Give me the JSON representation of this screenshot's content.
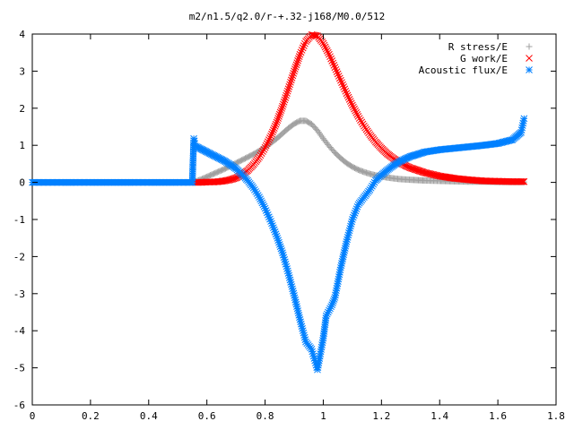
{
  "chart_data": {
    "type": "scatter",
    "title": "m2/n1.5/q2.0/r-+.32-j168/M0.0/512",
    "xlabel": "",
    "ylabel": "",
    "xlim": [
      0,
      1.8
    ],
    "ylim": [
      -6,
      4
    ],
    "x_ticks": [
      "0",
      "0.2",
      "0.4",
      "0.6",
      "0.8",
      "1",
      "1.2",
      "1.4",
      "1.6",
      "1.8"
    ],
    "y_ticks": [
      "-6",
      "-5",
      "-4",
      "-3",
      "-2",
      "-1",
      "0",
      "1",
      "2",
      "3",
      "4"
    ],
    "grid": false,
    "legend_position": "top-right",
    "series": [
      {
        "name": "R stress/E",
        "color": "#a0a0a0",
        "marker": "plus",
        "points": [
          [
            0.56,
            0.02
          ],
          [
            0.58,
            0.08
          ],
          [
            0.6,
            0.15
          ],
          [
            0.62,
            0.22
          ],
          [
            0.64,
            0.29
          ],
          [
            0.66,
            0.36
          ],
          [
            0.68,
            0.44
          ],
          [
            0.7,
            0.52
          ],
          [
            0.72,
            0.6
          ],
          [
            0.74,
            0.68
          ],
          [
            0.76,
            0.76
          ],
          [
            0.78,
            0.85
          ],
          [
            0.8,
            0.95
          ],
          [
            0.82,
            1.06
          ],
          [
            0.84,
            1.18
          ],
          [
            0.86,
            1.32
          ],
          [
            0.88,
            1.46
          ],
          [
            0.9,
            1.58
          ],
          [
            0.92,
            1.66
          ],
          [
            0.94,
            1.66
          ],
          [
            0.96,
            1.57
          ],
          [
            0.98,
            1.4
          ],
          [
            1.0,
            1.18
          ],
          [
            1.02,
            0.98
          ],
          [
            1.04,
            0.8
          ],
          [
            1.06,
            0.65
          ],
          [
            1.08,
            0.52
          ],
          [
            1.1,
            0.42
          ],
          [
            1.12,
            0.34
          ],
          [
            1.14,
            0.28
          ],
          [
            1.16,
            0.23
          ],
          [
            1.18,
            0.19
          ],
          [
            1.2,
            0.16
          ],
          [
            1.22,
            0.13
          ],
          [
            1.24,
            0.11
          ],
          [
            1.26,
            0.09
          ],
          [
            1.28,
            0.08
          ],
          [
            1.3,
            0.07
          ],
          [
            1.35,
            0.05
          ],
          [
            1.4,
            0.04
          ],
          [
            1.45,
            0.03
          ],
          [
            1.5,
            0.02
          ],
          [
            1.55,
            0.02
          ],
          [
            1.6,
            0.01
          ],
          [
            1.65,
            0.01
          ],
          [
            1.69,
            0.01
          ]
        ]
      },
      {
        "name": "G work/E",
        "color": "#ff0000",
        "marker": "cross",
        "points": [
          [
            0.56,
            0.0
          ],
          [
            0.58,
            0.0
          ],
          [
            0.6,
            0.01
          ],
          [
            0.62,
            0.01
          ],
          [
            0.64,
            0.02
          ],
          [
            0.66,
            0.04
          ],
          [
            0.68,
            0.07
          ],
          [
            0.7,
            0.12
          ],
          [
            0.72,
            0.2
          ],
          [
            0.74,
            0.32
          ],
          [
            0.76,
            0.48
          ],
          [
            0.78,
            0.68
          ],
          [
            0.8,
            0.94
          ],
          [
            0.82,
            1.25
          ],
          [
            0.84,
            1.62
          ],
          [
            0.86,
            2.05
          ],
          [
            0.88,
            2.52
          ],
          [
            0.9,
            3.0
          ],
          [
            0.92,
            3.45
          ],
          [
            0.94,
            3.8
          ],
          [
            0.96,
            3.98
          ],
          [
            0.98,
            3.95
          ],
          [
            1.0,
            3.75
          ],
          [
            1.02,
            3.45
          ],
          [
            1.04,
            3.1
          ],
          [
            1.06,
            2.75
          ],
          [
            1.08,
            2.4
          ],
          [
            1.1,
            2.08
          ],
          [
            1.12,
            1.78
          ],
          [
            1.14,
            1.52
          ],
          [
            1.16,
            1.29
          ],
          [
            1.18,
            1.09
          ],
          [
            1.2,
            0.92
          ],
          [
            1.22,
            0.77
          ],
          [
            1.24,
            0.65
          ],
          [
            1.26,
            0.55
          ],
          [
            1.28,
            0.46
          ],
          [
            1.3,
            0.39
          ],
          [
            1.35,
            0.26
          ],
          [
            1.4,
            0.17
          ],
          [
            1.45,
            0.11
          ],
          [
            1.5,
            0.07
          ],
          [
            1.55,
            0.04
          ],
          [
            1.6,
            0.03
          ],
          [
            1.65,
            0.02
          ],
          [
            1.69,
            0.02
          ]
        ]
      },
      {
        "name": "Acoustic flux/E",
        "color": "#0080ff",
        "marker": "star",
        "points": [
          [
            0.0,
            0.0
          ],
          [
            0.05,
            0.0
          ],
          [
            0.1,
            0.0
          ],
          [
            0.15,
            0.0
          ],
          [
            0.2,
            0.0
          ],
          [
            0.25,
            0.0
          ],
          [
            0.3,
            0.0
          ],
          [
            0.35,
            0.0
          ],
          [
            0.4,
            0.0
          ],
          [
            0.45,
            0.0
          ],
          [
            0.5,
            0.0
          ],
          [
            0.55,
            0.0
          ],
          [
            0.555,
            1.18
          ],
          [
            0.56,
            0.98
          ],
          [
            0.58,
            0.9
          ],
          [
            0.6,
            0.82
          ],
          [
            0.62,
            0.74
          ],
          [
            0.64,
            0.66
          ],
          [
            0.66,
            0.58
          ],
          [
            0.68,
            0.48
          ],
          [
            0.7,
            0.37
          ],
          [
            0.72,
            0.22
          ],
          [
            0.74,
            0.05
          ],
          [
            0.76,
            -0.15
          ],
          [
            0.78,
            -0.4
          ],
          [
            0.8,
            -0.7
          ],
          [
            0.82,
            -1.05
          ],
          [
            0.84,
            -1.45
          ],
          [
            0.86,
            -1.9
          ],
          [
            0.88,
            -2.45
          ],
          [
            0.9,
            -3.05
          ],
          [
            0.92,
            -3.7
          ],
          [
            0.94,
            -4.3
          ],
          [
            0.96,
            -4.5
          ],
          [
            0.98,
            -5.05
          ],
          [
            1.0,
            -4.2
          ],
          [
            1.01,
            -3.6
          ],
          [
            1.03,
            -3.3
          ],
          [
            1.04,
            -3.1
          ],
          [
            1.06,
            -2.3
          ],
          [
            1.08,
            -1.6
          ],
          [
            1.1,
            -1.0
          ],
          [
            1.12,
            -0.6
          ],
          [
            1.14,
            -0.4
          ],
          [
            1.16,
            -0.2
          ],
          [
            1.18,
            0.05
          ],
          [
            1.2,
            0.2
          ],
          [
            1.22,
            0.33
          ],
          [
            1.24,
            0.45
          ],
          [
            1.26,
            0.55
          ],
          [
            1.28,
            0.63
          ],
          [
            1.3,
            0.7
          ],
          [
            1.35,
            0.82
          ],
          [
            1.4,
            0.88
          ],
          [
            1.45,
            0.92
          ],
          [
            1.5,
            0.96
          ],
          [
            1.55,
            1.0
          ],
          [
            1.6,
            1.05
          ],
          [
            1.65,
            1.15
          ],
          [
            1.68,
            1.35
          ],
          [
            1.69,
            1.72
          ]
        ]
      }
    ]
  }
}
